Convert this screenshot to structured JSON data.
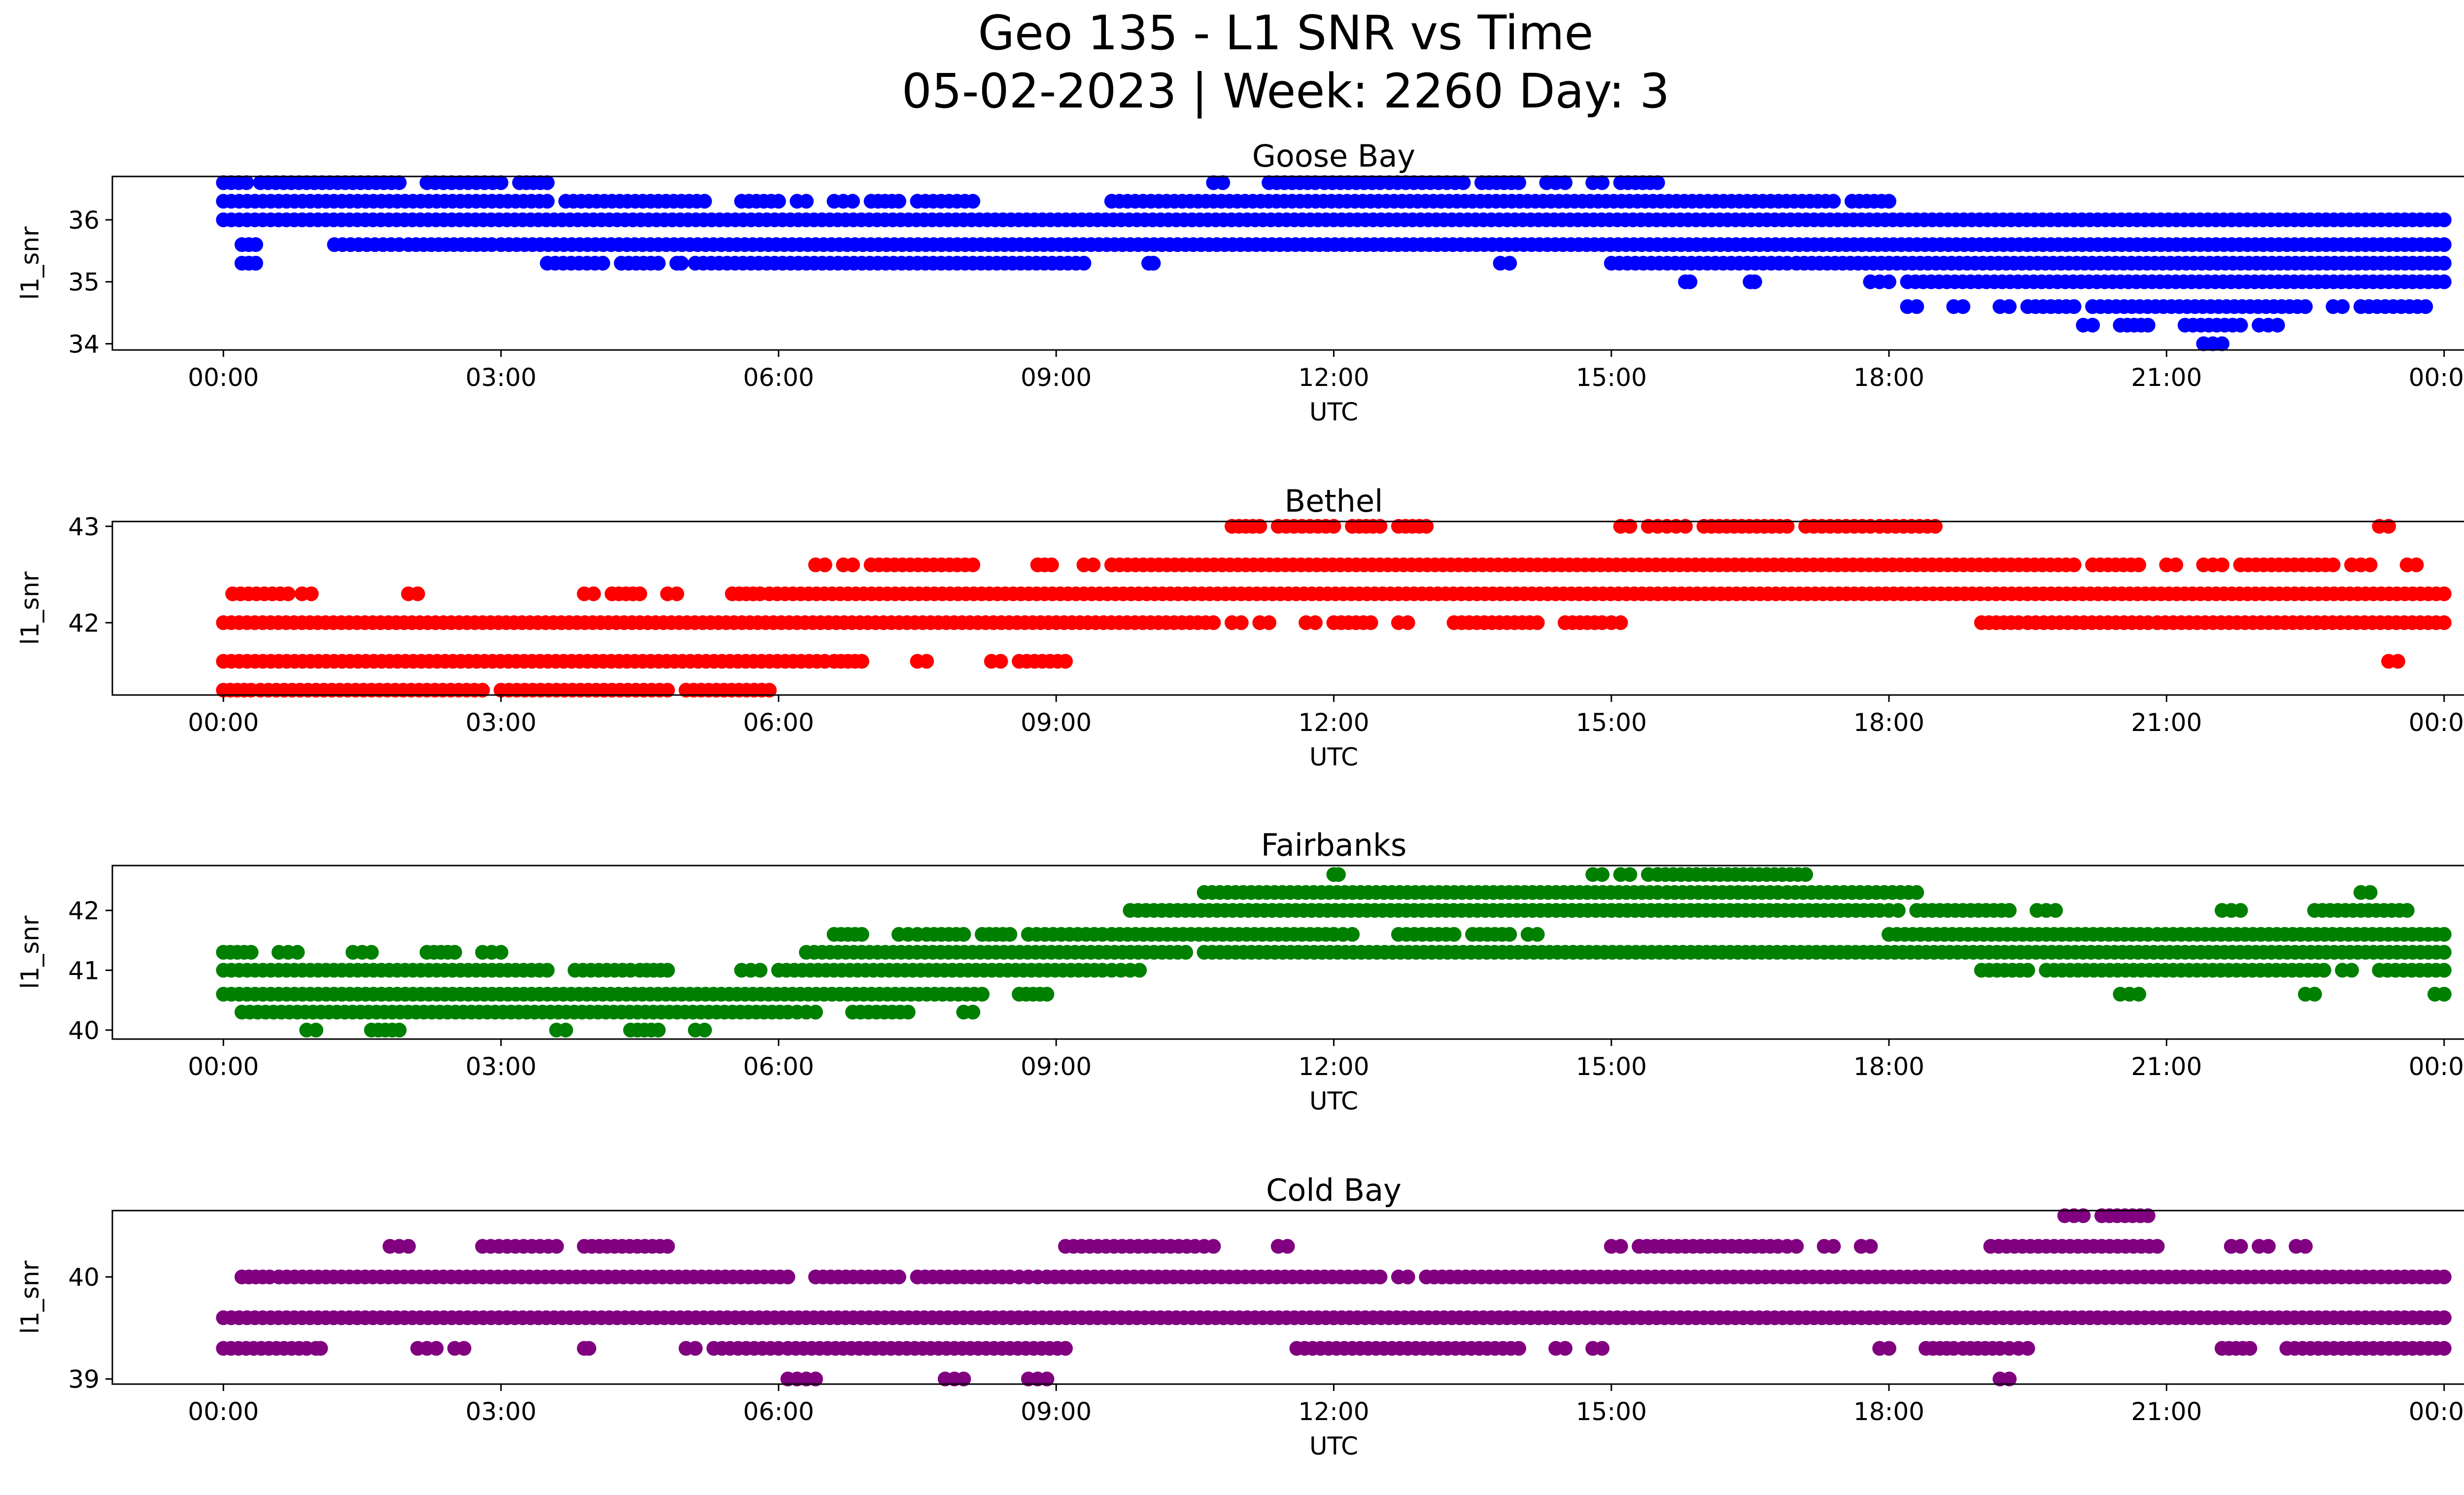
{
  "figure": {
    "title_line1": "Geo 135 - L1 SNR vs Time",
    "title_line2": "05-02-2023 | Week: 2260 Day: 3"
  },
  "chart_data": [
    {
      "type": "scatter",
      "title": "Goose Bay",
      "xlabel": "UTC",
      "ylabel": "l1_snr",
      "color": "#0000ff",
      "x_range_hours": [
        -1.2,
        25.2
      ],
      "x_tick_labels": [
        "00:00",
        "03:00",
        "06:00",
        "09:00",
        "12:00",
        "15:00",
        "18:00",
        "21:00",
        "00:00"
      ],
      "ylim": [
        33.9,
        36.7
      ],
      "y_ticks": [
        34,
        35,
        36
      ],
      "grid": false,
      "bands": [
        {
          "y": 36.0,
          "segments": [
            [
              0.0,
              24.0
            ]
          ]
        },
        {
          "y": 36.3,
          "segments": [
            [
              0.0,
              3.5
            ],
            [
              3.7,
              5.2
            ],
            [
              5.6,
              6.0
            ],
            [
              6.2,
              6.3
            ],
            [
              6.6,
              6.8
            ],
            [
              7.0,
              7.3
            ],
            [
              7.5,
              8.1
            ],
            [
              9.6,
              17.4
            ],
            [
              17.6,
              18.0
            ]
          ]
        },
        {
          "y": 36.6,
          "segments": [
            [
              0.0,
              0.25
            ],
            [
              0.4,
              1.9
            ],
            [
              2.2,
              3.0
            ],
            [
              3.2,
              3.5
            ],
            [
              10.7,
              10.8
            ],
            [
              11.3,
              11.8
            ],
            [
              11.9,
              12.5
            ],
            [
              12.6,
              13.4
            ],
            [
              13.6,
              14.0
            ],
            [
              14.3,
              14.5
            ],
            [
              14.8,
              14.9
            ],
            [
              15.1,
              15.5
            ]
          ]
        },
        {
          "y": 35.6,
          "segments": [
            [
              0.2,
              0.35
            ],
            [
              1.2,
              1.9
            ],
            [
              2.0,
              2.9
            ],
            [
              3.0,
              24.0
            ]
          ]
        },
        {
          "y": 35.3,
          "segments": [
            [
              0.2,
              0.35
            ],
            [
              3.5,
              4.1
            ],
            [
              4.3,
              4.7
            ],
            [
              4.9,
              4.95
            ],
            [
              5.1,
              9.3
            ],
            [
              10.0,
              10.05
            ],
            [
              13.8,
              13.9
            ],
            [
              15.0,
              16.9
            ],
            [
              17.0,
              18.0
            ],
            [
              18.0,
              24.0
            ]
          ]
        },
        {
          "y": 35.0,
          "segments": [
            [
              15.8,
              15.85
            ],
            [
              16.5,
              16.55
            ],
            [
              17.8,
              18.0
            ],
            [
              18.2,
              24.0
            ]
          ]
        },
        {
          "y": 34.6,
          "segments": [
            [
              18.2,
              18.3
            ],
            [
              18.7,
              18.8
            ],
            [
              19.2,
              19.3
            ],
            [
              19.5,
              20.0
            ],
            [
              20.2,
              22.5
            ],
            [
              22.8,
              22.9
            ],
            [
              23.1,
              23.8
            ]
          ]
        },
        {
          "y": 34.3,
          "segments": [
            [
              20.1,
              20.2
            ],
            [
              20.5,
              20.8
            ],
            [
              21.2,
              21.8
            ],
            [
              22.0,
              22.2
            ]
          ]
        },
        {
          "y": 34.0,
          "segments": [
            [
              21.4,
              21.6
            ]
          ]
        }
      ]
    },
    {
      "type": "scatter",
      "title": "Bethel",
      "xlabel": "UTC",
      "ylabel": "l1_snr",
      "color": "#ff0000",
      "x_range_hours": [
        -1.2,
        25.2
      ],
      "x_tick_labels": [
        "00:00",
        "03:00",
        "06:00",
        "09:00",
        "12:00",
        "15:00",
        "18:00",
        "21:00",
        "00:00"
      ],
      "ylim": [
        41.25,
        43.05
      ],
      "y_ticks": [
        42,
        43
      ],
      "grid": false,
      "bands": [
        {
          "y": 42.0,
          "segments": [
            [
              0.0,
              10.7
            ],
            [
              10.9,
              11.0
            ],
            [
              11.2,
              11.3
            ],
            [
              11.7,
              11.8
            ],
            [
              12.0,
              12.4
            ],
            [
              12.7,
              12.8
            ],
            [
              13.3,
              14.2
            ],
            [
              14.5,
              14.9
            ],
            [
              15.0,
              15.1
            ],
            [
              19.0,
              19.4
            ],
            [
              19.5,
              20.8
            ],
            [
              20.9,
              24.0
            ]
          ]
        },
        {
          "y": 41.6,
          "segments": [
            [
              0.0,
              6.5
            ],
            [
              6.6,
              6.9
            ],
            [
              7.5,
              7.6
            ],
            [
              8.3,
              8.4
            ],
            [
              8.6,
              9.1
            ],
            [
              23.4,
              23.5
            ]
          ]
        },
        {
          "y": 41.3,
          "segments": [
            [
              0.0,
              0.3
            ],
            [
              0.4,
              2.8
            ],
            [
              3.0,
              4.8
            ],
            [
              5.0,
              5.9
            ]
          ]
        },
        {
          "y": 42.3,
          "segments": [
            [
              0.1,
              0.7
            ],
            [
              0.85,
              0.95
            ],
            [
              2.0,
              2.1
            ],
            [
              3.9,
              4.0
            ],
            [
              4.2,
              4.5
            ],
            [
              4.8,
              4.9
            ],
            [
              5.5,
              5.8
            ],
            [
              5.9,
              24.0
            ]
          ]
        },
        {
          "y": 42.6,
          "segments": [
            [
              6.4,
              6.5
            ],
            [
              6.7,
              6.8
            ],
            [
              7.0,
              8.1
            ],
            [
              8.8,
              8.95
            ],
            [
              9.3,
              9.4
            ],
            [
              9.6,
              20.0
            ],
            [
              20.2,
              20.7
            ],
            [
              21.0,
              21.1
            ],
            [
              21.4,
              21.6
            ],
            [
              21.8,
              22.8
            ],
            [
              23.0,
              23.2
            ],
            [
              23.6,
              23.7
            ]
          ]
        },
        {
          "y": 43.0,
          "segments": [
            [
              10.9,
              11.2
            ],
            [
              11.4,
              12.0
            ],
            [
              12.2,
              12.5
            ],
            [
              12.7,
              13.0
            ],
            [
              15.1,
              15.2
            ],
            [
              15.4,
              15.5
            ],
            [
              15.6,
              15.8
            ],
            [
              16.0,
              16.9
            ],
            [
              17.1,
              17.8
            ],
            [
              17.9,
              18.5
            ],
            [
              23.3,
              23.4
            ]
          ]
        }
      ]
    },
    {
      "type": "scatter",
      "title": "Fairbanks",
      "xlabel": "UTC",
      "ylabel": "l1_snr",
      "color": "#008000",
      "x_range_hours": [
        -1.2,
        25.2
      ],
      "x_tick_labels": [
        "00:00",
        "03:00",
        "06:00",
        "09:00",
        "12:00",
        "15:00",
        "18:00",
        "21:00",
        "00:00"
      ],
      "ylim": [
        39.85,
        42.75
      ],
      "y_ticks": [
        40,
        41,
        42
      ],
      "grid": false,
      "bands": [
        {
          "y": 41.0,
          "segments": [
            [
              0.0,
              3.5
            ],
            [
              3.8,
              4.4
            ],
            [
              4.5,
              4.8
            ],
            [
              5.6,
              5.8
            ],
            [
              6.0,
              9.5
            ],
            [
              9.6,
              9.7
            ],
            [
              9.8,
              9.9
            ],
            [
              19.0,
              19.5
            ],
            [
              19.7,
              22.7
            ],
            [
              22.9,
              23.0
            ],
            [
              23.3,
              24.0
            ]
          ]
        },
        {
          "y": 40.6,
          "segments": [
            [
              0.0,
              8.2
            ],
            [
              8.6,
              8.9
            ],
            [
              20.5,
              20.7
            ],
            [
              22.5,
              22.6
            ],
            [
              23.9,
              24.0
            ]
          ]
        },
        {
          "y": 40.3,
          "segments": [
            [
              0.2,
              6.1
            ],
            [
              6.2,
              6.4
            ],
            [
              6.8,
              7.4
            ],
            [
              8.0,
              8.1
            ]
          ]
        },
        {
          "y": 41.3,
          "segments": [
            [
              0.0,
              0.3
            ],
            [
              0.6,
              0.8
            ],
            [
              1.4,
              1.6
            ],
            [
              2.2,
              2.5
            ],
            [
              2.8,
              3.0
            ],
            [
              6.3,
              10.4
            ],
            [
              10.6,
              24.0
            ]
          ]
        },
        {
          "y": 40.0,
          "segments": [
            [
              0.9,
              1.0
            ],
            [
              1.6,
              1.9
            ],
            [
              3.6,
              3.7
            ],
            [
              4.4,
              4.7
            ],
            [
              5.1,
              5.2
            ]
          ]
        },
        {
          "y": 41.6,
          "segments": [
            [
              6.6,
              6.9
            ],
            [
              7.3,
              7.5
            ],
            [
              7.6,
              8.0
            ],
            [
              8.2,
              8.5
            ],
            [
              8.7,
              9.5
            ],
            [
              9.6,
              12.0
            ],
            [
              12.0,
              12.2
            ],
            [
              12.7,
              13.3
            ],
            [
              13.5,
              13.9
            ],
            [
              14.1,
              14.2
            ],
            [
              18.0,
              18.6
            ],
            [
              18.6,
              20.8
            ],
            [
              20.9,
              24.0
            ]
          ]
        },
        {
          "y": 42.0,
          "segments": [
            [
              9.8,
              17.9
            ],
            [
              18.0,
              18.1
            ],
            [
              18.3,
              19.3
            ],
            [
              19.6,
              19.8
            ],
            [
              21.6,
              21.8
            ],
            [
              22.6,
              23.6
            ]
          ]
        },
        {
          "y": 42.3,
          "segments": [
            [
              10.6,
              15.5
            ],
            [
              15.6,
              16.8
            ],
            [
              16.9,
              18.3
            ],
            [
              23.1,
              23.2
            ]
          ]
        },
        {
          "y": 42.6,
          "segments": [
            [
              12.0,
              12.05
            ],
            [
              14.8,
              14.9
            ],
            [
              15.1,
              15.2
            ],
            [
              15.4,
              15.5
            ],
            [
              15.5,
              17.1
            ]
          ]
        }
      ]
    },
    {
      "type": "scatter",
      "title": "Cold Bay",
      "xlabel": "UTC",
      "ylabel": "l1_snr",
      "color": "#800080",
      "x_range_hours": [
        -1.2,
        25.2
      ],
      "x_tick_labels": [
        "00:00",
        "03:00",
        "06:00",
        "09:00",
        "12:00",
        "15:00",
        "18:00",
        "21:00",
        "00:00"
      ],
      "ylim": [
        38.95,
        40.65
      ],
      "y_ticks": [
        39,
        40
      ],
      "grid": false,
      "bands": [
        {
          "y": 39.6,
          "segments": [
            [
              0.0,
              12.0
            ],
            [
              12.0,
              24.0
            ]
          ]
        },
        {
          "y": 39.3,
          "segments": [
            [
              0.0,
              0.9
            ],
            [
              1.0,
              1.05
            ],
            [
              2.1,
              2.3
            ],
            [
              2.5,
              2.6
            ],
            [
              3.9,
              3.95
            ],
            [
              5.0,
              5.1
            ],
            [
              5.3,
              6.0
            ],
            [
              6.1,
              9.1
            ],
            [
              11.6,
              14.0
            ],
            [
              14.4,
              14.5
            ],
            [
              14.8,
              14.9
            ],
            [
              17.9,
              18.0
            ],
            [
              18.4,
              18.7
            ],
            [
              18.8,
              19.2
            ],
            [
              19.3,
              19.5
            ],
            [
              21.6,
              21.9
            ],
            [
              22.3,
              24.0
            ]
          ]
        },
        {
          "y": 40.0,
          "segments": [
            [
              0.2,
              0.5
            ],
            [
              0.6,
              6.1
            ],
            [
              6.4,
              7.3
            ],
            [
              7.5,
              8.5
            ],
            [
              8.6,
              8.8
            ],
            [
              8.9,
              12.5
            ],
            [
              12.7,
              12.8
            ],
            [
              13.0,
              24.0
            ]
          ]
        },
        {
          "y": 40.3,
          "segments": [
            [
              1.8,
              2.0
            ],
            [
              2.8,
              3.6
            ],
            [
              3.9,
              4.8
            ],
            [
              9.1,
              10.5
            ],
            [
              10.6,
              10.7
            ],
            [
              11.4,
              11.5
            ],
            [
              15.0,
              15.1
            ],
            [
              15.3,
              16.8
            ],
            [
              16.9,
              17.0
            ],
            [
              17.3,
              17.4
            ],
            [
              17.7,
              17.8
            ],
            [
              19.1,
              20.9
            ],
            [
              21.7,
              21.8
            ],
            [
              22.0,
              22.1
            ],
            [
              22.4,
              22.5
            ]
          ]
        },
        {
          "y": 39.0,
          "segments": [
            [
              6.1,
              6.2
            ],
            [
              6.3,
              6.4
            ],
            [
              7.8,
              8.0
            ],
            [
              8.7,
              8.9
            ],
            [
              19.2,
              19.3
            ]
          ]
        },
        {
          "y": 40.6,
          "segments": [
            [
              19.9,
              20.1
            ],
            [
              20.3,
              20.8
            ]
          ]
        }
      ]
    }
  ]
}
